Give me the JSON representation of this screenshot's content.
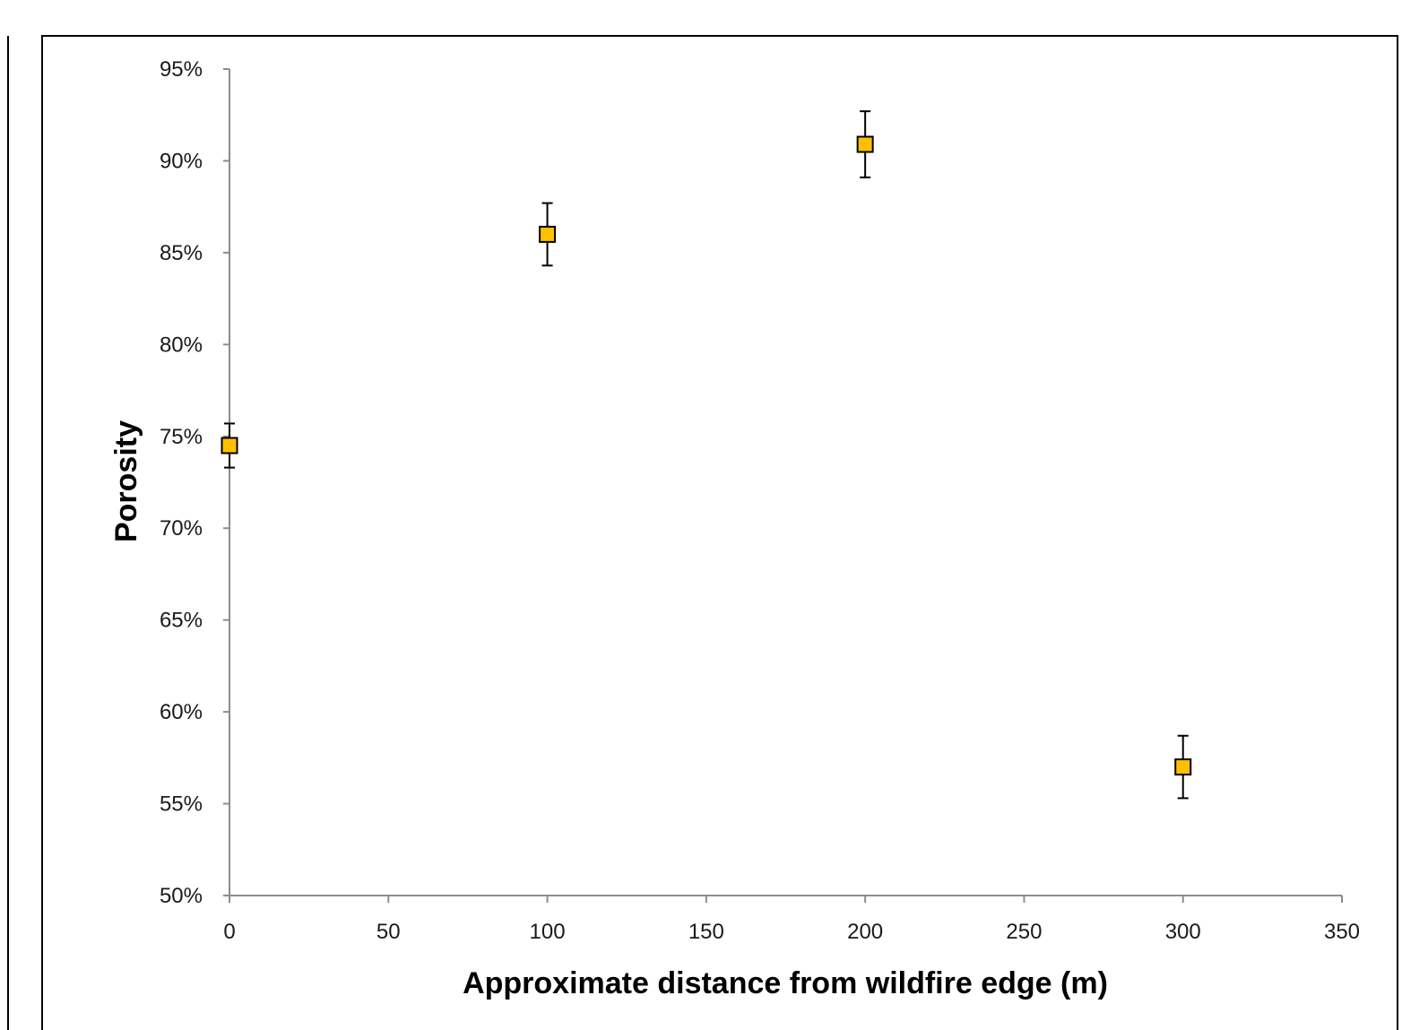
{
  "chart_data": {
    "type": "scatter",
    "title": "",
    "xlabel": "Approximate distance from wildfire edge (m)",
    "ylabel": "Porosity",
    "xlim": [
      0,
      350
    ],
    "ylim": [
      0.5,
      0.95
    ],
    "x_ticks": [
      0,
      50,
      100,
      150,
      200,
      250,
      300,
      350
    ],
    "x_tick_labels": [
      "0",
      "50",
      "100",
      "150",
      "200",
      "250",
      "300",
      "350"
    ],
    "y_ticks": [
      0.5,
      0.55,
      0.6,
      0.65,
      0.7,
      0.75,
      0.8,
      0.85,
      0.9,
      0.95
    ],
    "y_tick_labels": [
      "50%",
      "55%",
      "60%",
      "65%",
      "70%",
      "75%",
      "80%",
      "85%",
      "90%",
      "95%"
    ],
    "grid": false,
    "legend": "none",
    "marker": "square",
    "marker_color": "#FFC000",
    "series": [
      {
        "x": [
          0,
          100,
          200,
          300
        ],
        "y": [
          0.745,
          0.86,
          0.909,
          0.57
        ],
        "error_upper": [
          0.757,
          0.877,
          0.927,
          0.587
        ],
        "error_lower": [
          0.733,
          0.843,
          0.891,
          0.553
        ]
      }
    ]
  }
}
